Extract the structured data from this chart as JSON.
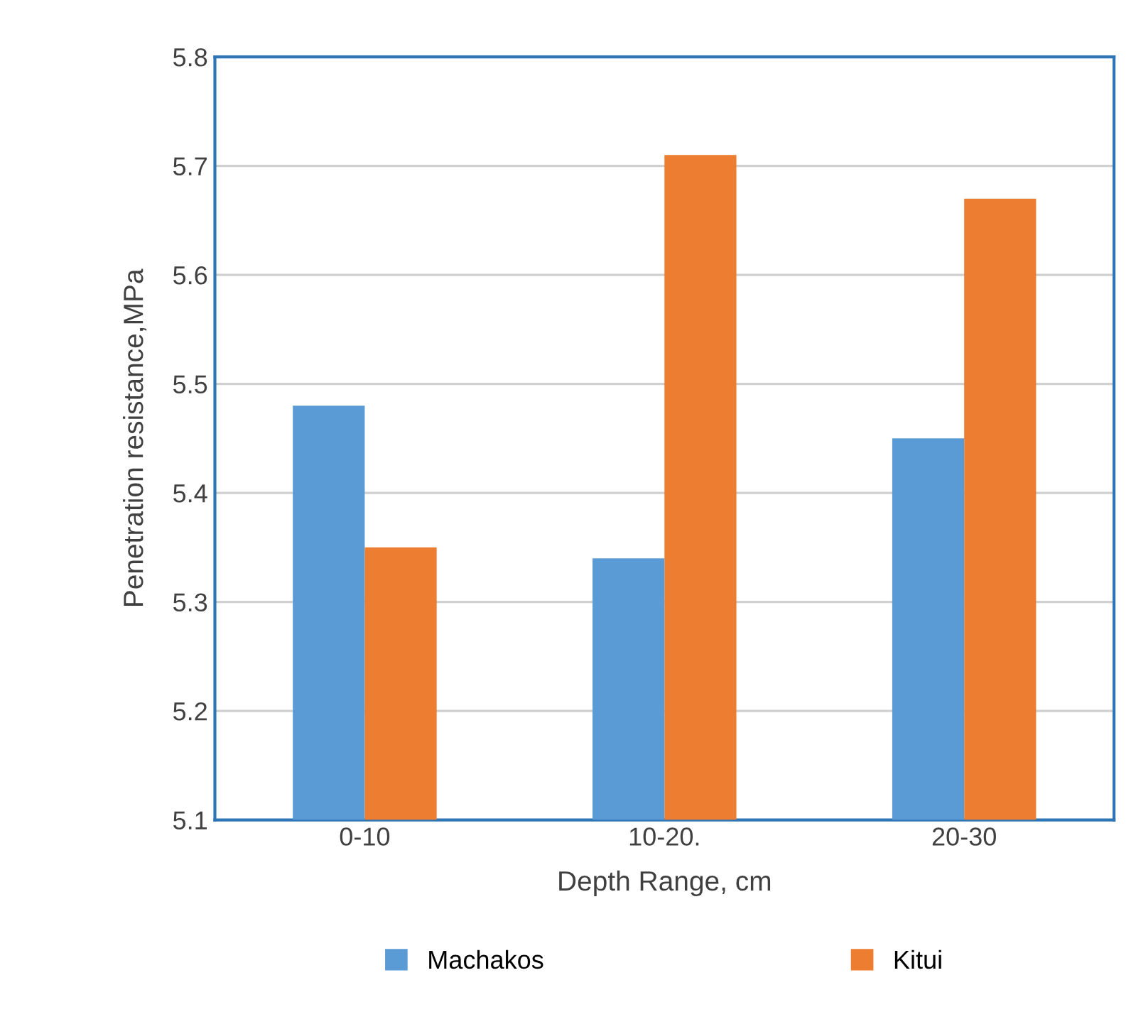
{
  "chart_data": {
    "type": "bar",
    "xlabel": "Depth Range, cm",
    "ylabel": "Penetration resistance,MPa",
    "categories": [
      "0-10",
      "10-20.",
      "20-30"
    ],
    "series": [
      {
        "name": "Machakos",
        "color": "#5b9bd5",
        "values": [
          5.48,
          5.34,
          5.45
        ]
      },
      {
        "name": "Kitui",
        "color": "#ed7d31",
        "values": [
          5.35,
          5.71,
          5.67
        ]
      }
    ],
    "ylim": [
      5.1,
      5.8
    ],
    "yticks": [
      5.1,
      5.2,
      5.3,
      5.4,
      5.5,
      5.6,
      5.7,
      5.8
    ],
    "grid": "y",
    "legend": "bottom"
  }
}
